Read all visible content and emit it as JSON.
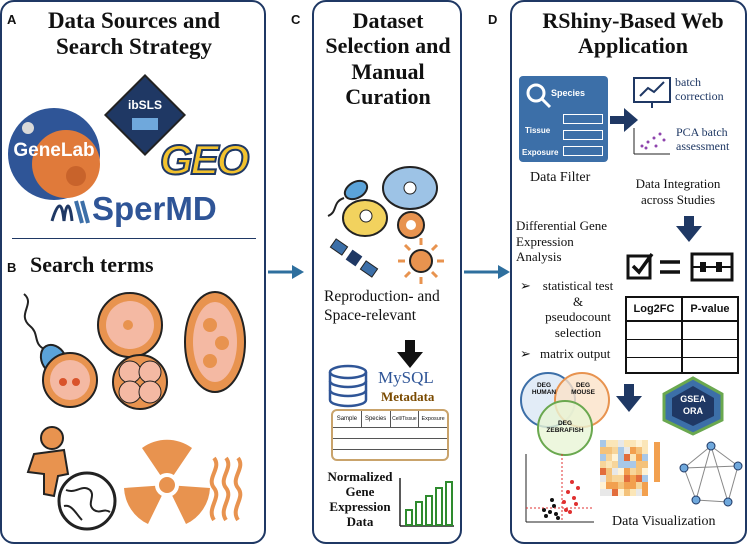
{
  "panelA": {
    "letter": "A",
    "title": "Data Sources and Search Strategy",
    "logos": {
      "genelab": "GeneLab",
      "ibsls": "ibSLS",
      "geo": "GEO",
      "spermd": "SperMD"
    },
    "search_letter": "B",
    "search_title": "Search terms"
  },
  "panelC": {
    "letter": "C",
    "title": "Dataset Selection and Manual Curation",
    "relevance": "Reproduction- and Space-relevant",
    "db_label": "MySQL",
    "metadata_label": "Metadata",
    "table_headers": [
      "Sample",
      "Species",
      "Cell/Tissue",
      "Exposure"
    ],
    "norm_label": "Normalized Gene Expression Data"
  },
  "panelD": {
    "letter": "D",
    "title": "RShiny-Based Web Application",
    "filter_labels": [
      "Species",
      "Tissue",
      "Exposure"
    ],
    "filter_caption": "Data Filter",
    "batch_correction": "batch correction",
    "pca_batch": "PCA batch assessment",
    "integration_caption": "Data Integration across Studies",
    "dge_title": "Differential Gene Expression Analysis",
    "dge_items": [
      "statistical test & pseudocount selection",
      "matrix output"
    ],
    "table_headers": [
      "Log2FC",
      "P-value"
    ],
    "venn": [
      "DEG HUMAN",
      "DEG MOUSE",
      "DEG ZEBRAFISH"
    ],
    "gsea": [
      "GSEA",
      "ORA"
    ],
    "viz_caption": "Data Visualization"
  },
  "colors": {
    "border": "#1f3864",
    "arrow": "#2e6f9e",
    "orange": "#e8934f",
    "blue": "#3c6fa8",
    "navy": "#1f3864"
  }
}
